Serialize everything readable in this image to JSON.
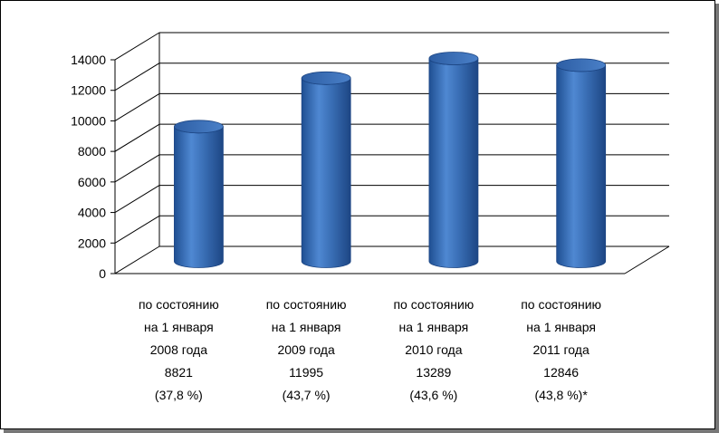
{
  "chart_data": {
    "type": "bar",
    "style": "3d-cylinder",
    "title": "",
    "xlabel": "",
    "ylabel": "",
    "ylim": [
      0,
      14000
    ],
    "yticks": [
      0,
      2000,
      4000,
      6000,
      8000,
      10000,
      12000,
      14000
    ],
    "grid": true,
    "legend": "none",
    "bar_color": "#3a6fb6",
    "categories": [
      [
        "по состоянию",
        "на 1 января",
        "2008 года",
        "8821",
        "(37,8 %)"
      ],
      [
        "по состоянию",
        "на 1 января",
        "2009 года",
        "11995",
        "(43,7 %)"
      ],
      [
        "по состоянию",
        "на 1 января",
        "2010 года",
        "13289",
        "(43,6 %)"
      ],
      [
        "по состоянию",
        "на 1 января",
        "2011 года",
        "12846",
        "(43,8 %)*"
      ]
    ],
    "values": [
      8821,
      11995,
      13289,
      12846
    ]
  }
}
